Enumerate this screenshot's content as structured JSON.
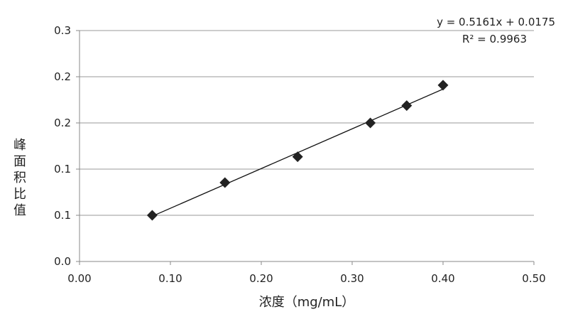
{
  "chart_data": {
    "type": "scatter",
    "title": "",
    "xlabel": "浓度（mg/mL）",
    "ylabel": "峰面积比值",
    "xlim": [
      0,
      0.5
    ],
    "ylim": [
      0,
      0.3
    ],
    "grid": true,
    "x_ticks": [
      "0.00",
      "0.10",
      "0.20",
      "0.30",
      "0.40",
      "0.50"
    ],
    "y_ticks": [
      "0.0",
      "0.1",
      "0.1",
      "0.2",
      "0.2",
      "0.3"
    ],
    "points": [
      {
        "x": 0.08,
        "y": 0.06
      },
      {
        "x": 0.16,
        "y": 0.1025
      },
      {
        "x": 0.24,
        "y": 0.136
      },
      {
        "x": 0.32,
        "y": 0.18
      },
      {
        "x": 0.36,
        "y": 0.2025
      },
      {
        "x": 0.4,
        "y": 0.229
      }
    ],
    "trendline": {
      "slope": 0.5161,
      "intercept": 0.0175,
      "x_range": [
        0.08,
        0.4
      ],
      "equation": "y = 0.5161x + 0.0175",
      "r_squared": "R² = 0.9963"
    },
    "colors": {
      "marker": "#222222",
      "line": "#111111",
      "grid": "#9a9a9a"
    }
  }
}
